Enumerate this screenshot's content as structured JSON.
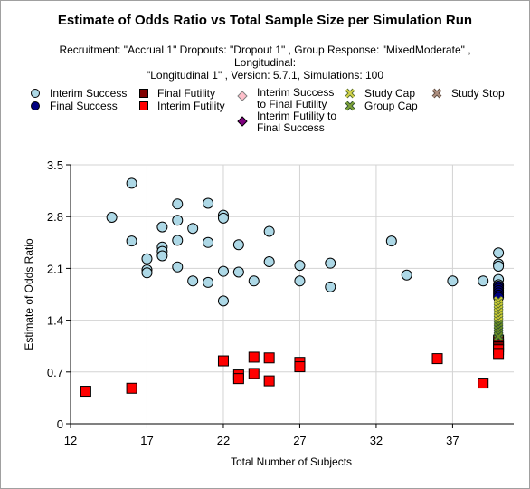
{
  "chart_data": {
    "type": "scatter",
    "title": "Estimate of Odds Ratio vs Total Sample Size per Simulation Run",
    "subtitle_line1": "Recruitment: \"Accrual 1\" Dropouts: \"Dropout 1\" , Group Response: \"MixedModerate\" , Longitudinal:",
    "subtitle_line2": "\"Longitudinal 1\" , Version: 5.7.1, Simulations: 100",
    "xlabel": "Total Number of Subjects",
    "ylabel": "Estimate of Odds Ratio",
    "xlim": [
      12,
      41
    ],
    "ylim": [
      0,
      3.5
    ],
    "xticks": [
      "12",
      "17",
      "22",
      "27",
      "32",
      "37"
    ],
    "xtick_values": [
      12,
      17,
      22,
      27,
      32,
      37
    ],
    "yticks": [
      "0",
      "0.7",
      "1.4",
      "2.1",
      "2.8",
      "3.5"
    ],
    "ytick_values": [
      0,
      0.7,
      1.4,
      2.1,
      2.8,
      3.5
    ],
    "grid": true,
    "legend_position": "top",
    "series": [
      {
        "name": "Interim Success",
        "marker": "circle",
        "color": "#add8e6",
        "points": [
          [
            14.7,
            2.79
          ],
          [
            16,
            3.25
          ],
          [
            16,
            2.47
          ],
          [
            17,
            2.23
          ],
          [
            17,
            2.08
          ],
          [
            17,
            2.04
          ],
          [
            18,
            2.66
          ],
          [
            18,
            2.39
          ],
          [
            18,
            2.33
          ],
          [
            18,
            2.27
          ],
          [
            19,
            2.97
          ],
          [
            19,
            2.75
          ],
          [
            19,
            2.48
          ],
          [
            19,
            2.12
          ],
          [
            20,
            2.64
          ],
          [
            20,
            1.93
          ],
          [
            21,
            2.98
          ],
          [
            21,
            2.45
          ],
          [
            21,
            1.91
          ],
          [
            22,
            2.82
          ],
          [
            22,
            2.78
          ],
          [
            22,
            2.06
          ],
          [
            22,
            1.66
          ],
          [
            23,
            2.42
          ],
          [
            23,
            2.05
          ],
          [
            24,
            1.93
          ],
          [
            25,
            2.6
          ],
          [
            25,
            2.19
          ],
          [
            27,
            2.14
          ],
          [
            27,
            1.93
          ],
          [
            29,
            2.17
          ],
          [
            29,
            1.85
          ],
          [
            33,
            2.47
          ],
          [
            34,
            2.01
          ],
          [
            37,
            1.93
          ],
          [
            39,
            1.93
          ],
          [
            40,
            2.31
          ],
          [
            40,
            2.16
          ],
          [
            40,
            2.13
          ],
          [
            40,
            1.95
          ],
          [
            40,
            1.88
          ]
        ]
      },
      {
        "name": "Final Success",
        "marker": "circle",
        "color": "#000080",
        "points": [
          [
            40,
            1.86
          ],
          [
            40,
            1.83
          ],
          [
            40,
            1.8
          ],
          [
            40,
            1.77
          ],
          [
            40,
            1.74
          ],
          [
            40,
            1.71
          ]
        ]
      },
      {
        "name": "Final Futility",
        "marker": "square",
        "color": "#800000",
        "points": [
          [
            40,
            1.13
          ],
          [
            40,
            1.08
          ],
          [
            40,
            1.04
          ]
        ]
      },
      {
        "name": "Interim Futility",
        "marker": "square",
        "color": "#ff0000",
        "points": [
          [
            13,
            0.44
          ],
          [
            16,
            0.48
          ],
          [
            22,
            0.85
          ],
          [
            23,
            0.66
          ],
          [
            23,
            0.61
          ],
          [
            24,
            0.9
          ],
          [
            24,
            0.68
          ],
          [
            25,
            0.89
          ],
          [
            25,
            0.58
          ],
          [
            27,
            0.83
          ],
          [
            27,
            0.77
          ],
          [
            36,
            0.88
          ],
          [
            39,
            0.55
          ],
          [
            40,
            1.0
          ],
          [
            40,
            0.95
          ]
        ]
      },
      {
        "name": "Interim Success to Final Futility",
        "marker": "diamond",
        "color": "#ffc0cb",
        "points": []
      },
      {
        "name": "Interim Futility to Final Success",
        "marker": "diamond",
        "color": "#800080",
        "points": []
      },
      {
        "name": "Study Cap",
        "marker": "x",
        "color": "#cccc33",
        "points": [
          [
            40,
            1.66
          ],
          [
            40,
            1.62
          ],
          [
            40,
            1.58
          ],
          [
            40,
            1.54
          ],
          [
            40,
            1.5
          ],
          [
            40,
            1.46
          ],
          [
            40,
            1.42
          ],
          [
            40,
            1.38
          ]
        ]
      },
      {
        "name": "Group Cap",
        "marker": "x",
        "color": "#6b8e23",
        "points": [
          [
            40,
            1.34
          ],
          [
            40,
            1.3
          ],
          [
            40,
            1.26
          ],
          [
            40,
            1.22
          ],
          [
            40,
            1.18
          ]
        ]
      },
      {
        "name": "Study Stop",
        "marker": "x",
        "color": "#a0826d",
        "points": []
      }
    ]
  }
}
